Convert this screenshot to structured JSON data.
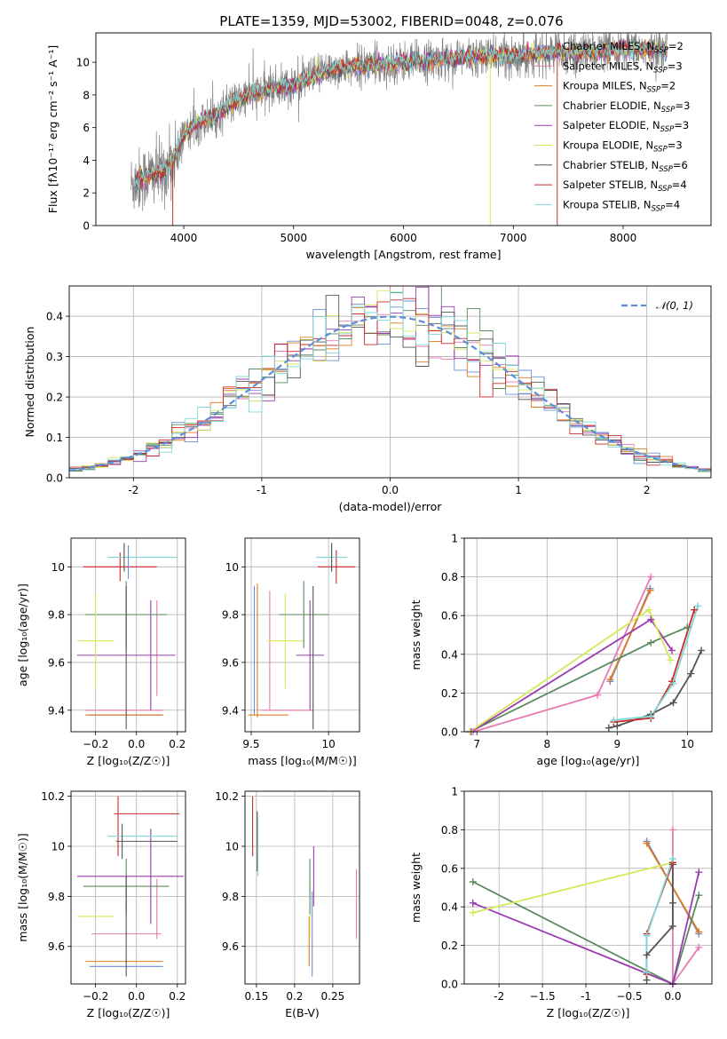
{
  "figure": {
    "title": "PLATE=1359, MJD=53002, FIBERID=0048, z=0.076",
    "colors": {
      "Chabrier MILES": "#6a8fd8",
      "Salpeter MILES": "#e87ab0",
      "Kroupa MILES": "#e07b1e",
      "Chabrier ELODIE": "#5a8a5e",
      "Salpeter ELODIE": "#9a3bb0",
      "Kroupa ELODIE": "#d4e85a",
      "Chabrier STELIB": "#555555",
      "Salpeter STELIB": "#cc2a2a",
      "Kroupa STELIB": "#7fd8d8",
      "data": "#808080",
      "gaussian": "#5b8fd6"
    }
  },
  "legend": {
    "entries": [
      {
        "name": "Chabrier MILES",
        "nssp": "2"
      },
      {
        "name": "Salpeter MILES",
        "nssp": "3"
      },
      {
        "name": "Kroupa MILES",
        "nssp": "2"
      },
      {
        "name": "Chabrier ELODIE",
        "nssp": "3"
      },
      {
        "name": "Salpeter ELODIE",
        "nssp": "3"
      },
      {
        "name": "Kroupa ELODIE",
        "nssp": "3"
      },
      {
        "name": "Chabrier STELIB",
        "nssp": "6"
      },
      {
        "name": "Salpeter STELIB",
        "nssp": "4"
      },
      {
        "name": "Kroupa STELIB",
        "nssp": "4"
      }
    ],
    "gaussian_label": "𝒩(0, 1)"
  },
  "chart_data": [
    {
      "id": "spectrum",
      "type": "line",
      "title": "PLATE=1359, MJD=53002, FIBERID=0048, z=0.076",
      "xlabel": "wavelength [Angstrom, rest frame]",
      "ylabel": "Flux [fλ10⁻¹⁷ erg cm⁻² s⁻¹ A⁻¹]",
      "xlim": [
        3200,
        8800
      ],
      "ylim": [
        0,
        11.8
      ],
      "xticks": [
        4000,
        5000,
        6000,
        7000,
        8000
      ],
      "yticks": [
        0,
        2,
        4,
        6,
        8,
        10
      ],
      "grid": false,
      "legend_position": "right",
      "continuum": {
        "x": [
          3520,
          3600,
          3700,
          3800,
          3900,
          4000,
          4100,
          4200,
          4300,
          4400,
          4600,
          4800,
          5000,
          5200,
          5400,
          5600,
          5800,
          6000,
          6200,
          6400,
          6600,
          6800,
          7000,
          7200,
          7400,
          7600,
          7800,
          8000,
          8200,
          8400
        ],
        "y": [
          2.5,
          2.8,
          3.1,
          3.2,
          3.9,
          5.5,
          6.2,
          6.5,
          6.7,
          7.3,
          8.0,
          8.4,
          8.6,
          9.2,
          9.6,
          9.8,
          9.9,
          10.0,
          10.1,
          10.2,
          10.3,
          10.4,
          10.4,
          10.5,
          10.6,
          10.6,
          10.7,
          10.7,
          10.8,
          10.8
        ]
      },
      "dropouts": [
        {
          "x": 3900,
          "y": 0
        },
        {
          "x": 6790,
          "y": 0
        },
        {
          "x": 7400,
          "y": 0
        }
      ]
    },
    {
      "id": "residuals",
      "type": "bar",
      "xlabel": "(data-model)/error",
      "ylabel": "Normed distribution",
      "xlim": [
        -2.5,
        2.5
      ],
      "ylim": [
        0,
        0.475
      ],
      "xticks": [
        -2,
        -1,
        0,
        1,
        2
      ],
      "yticks": [
        0.0,
        0.1,
        0.2,
        0.3,
        0.4
      ],
      "grid": true,
      "legend_position": "top-right",
      "bin_width": 0.1,
      "gaussian": {
        "mean": 0,
        "sigma": 1
      }
    },
    {
      "id": "age-vs-Z",
      "type": "scatter",
      "xlabel": "Z [log₁₀(Z/Z☉)]",
      "ylabel": "age  [log₁₀(age/yr)]",
      "xlim": [
        -0.32,
        0.24
      ],
      "ylim": [
        9.31,
        10.12
      ],
      "xticks": [
        -0.2,
        0.0,
        0.2
      ],
      "yticks": [
        9.4,
        9.6,
        9.8,
        10.0
      ],
      "grid": true,
      "points": [
        {
          "s": "Chabrier MILES",
          "x": -0.05,
          "y": 9.38,
          "ex": 0.18,
          "ey": 0.0
        },
        {
          "s": "Salpeter MILES",
          "x": -0.06,
          "y": 9.4,
          "ex": 0.19,
          "ey": 0.0
        },
        {
          "s": "Kroupa MILES",
          "x": -0.06,
          "y": 9.38,
          "ex": 0.19,
          "ey": 0.0
        },
        {
          "s": "Salpeter MILES",
          "x": 0.1,
          "y": 9.66,
          "ex": 0.0,
          "ey": 0.2
        },
        {
          "s": "Chabrier ELODIE",
          "x": -0.05,
          "y": 9.8,
          "ex": 0.2,
          "ey": 0.14
        },
        {
          "s": "Salpeter ELODIE",
          "x": 0.07,
          "y": 9.63,
          "ex": 0.0,
          "ey": 0.23
        },
        {
          "s": "Salpeter ELODIE",
          "x": -0.05,
          "y": 9.63,
          "ex": 0.24,
          "ey": 0.0
        },
        {
          "s": "Kroupa ELODIE",
          "x": -0.2,
          "y": 9.69,
          "ex": 0.09,
          "ey": 0.2
        },
        {
          "s": "Chabrier STELIB",
          "x": -0.05,
          "y": 9.62,
          "ex": 0.0,
          "ey": 0.3
        },
        {
          "s": "Salpeter STELIB",
          "x": -0.08,
          "y": 10.0,
          "ex": 0.18,
          "ey": 0.06
        },
        {
          "s": "Kroupa STELIB",
          "x": 0.03,
          "y": 10.04,
          "ex": 0.17,
          "ey": 0.0
        },
        {
          "s": "Chabrier STELIB",
          "x": -0.06,
          "y": 10.04,
          "ex": 0.0,
          "ey": 0.06
        },
        {
          "s": "Chabrier MILES",
          "x": -0.04,
          "y": 10.02,
          "ex": 0.0,
          "ey": 0.07
        }
      ]
    },
    {
      "id": "age-vs-mass",
      "type": "scatter",
      "xlabel": "mass [log₁₀(M/M☉)]",
      "ylabel": "",
      "xlim": [
        9.46,
        10.2
      ],
      "ylim": [
        9.31,
        10.12
      ],
      "xticks": [
        9.5,
        10.0
      ],
      "yticks": [
        9.4,
        9.6,
        9.8,
        10.0
      ],
      "grid": true,
      "points": [
        {
          "s": "Chabrier MILES",
          "x": 9.52,
          "y": 9.65,
          "ex": 0.0,
          "ey": 0.27
        },
        {
          "s": "Kroupa MILES",
          "x": 9.54,
          "y": 9.65,
          "ex": 0.0,
          "ey": 0.28
        },
        {
          "s": "Kroupa MILES",
          "x": 9.61,
          "y": 9.38,
          "ex": 0.13,
          "ey": 0.0
        },
        {
          "s": "Salpeter MILES",
          "x": 9.62,
          "y": 9.65,
          "ex": 0.0,
          "ey": 0.25
        },
        {
          "s": "Salpeter MILES",
          "x": 9.73,
          "y": 9.4,
          "ex": 0.17,
          "ey": 0.0
        },
        {
          "s": "Kroupa ELODIE",
          "x": 9.72,
          "y": 9.69,
          "ex": 0.12,
          "ey": 0.2
        },
        {
          "s": "Chabrier ELODIE",
          "x": 9.84,
          "y": 9.8,
          "ex": 0.16,
          "ey": 0.14
        },
        {
          "s": "Salpeter ELODIE",
          "x": 9.88,
          "y": 9.63,
          "ex": 0.0,
          "ey": 0.23
        },
        {
          "s": "Salpeter ELODIE",
          "x": 9.88,
          "y": 9.63,
          "ex": 0.09,
          "ey": 0.0
        },
        {
          "s": "Chabrier STELIB",
          "x": 9.9,
          "y": 9.62,
          "ex": 0.0,
          "ey": 0.3
        },
        {
          "s": "Salpeter STELIB",
          "x": 10.05,
          "y": 10.0,
          "ex": 0.12,
          "ey": 0.07
        },
        {
          "s": "Kroupa STELIB",
          "x": 10.02,
          "y": 10.04,
          "ex": 0.1,
          "ey": 0.06
        },
        {
          "s": "Chabrier STELIB",
          "x": 10.02,
          "y": 10.04,
          "ex": 0.0,
          "ey": 0.06
        }
      ]
    },
    {
      "id": "weight-vs-age",
      "type": "line",
      "xlabel": "age  [log₁₀(age/yr)]",
      "ylabel": "mass weight",
      "xlim": [
        6.82,
        10.35
      ],
      "ylim": [
        0,
        1.0
      ],
      "xticks": [
        7,
        8,
        9,
        10
      ],
      "yticks": [
        0.0,
        0.2,
        0.4,
        0.6,
        0.8,
        1.0
      ],
      "grid": true,
      "series": [
        {
          "name": "Chabrier MILES",
          "x": [
            9.47,
            8.9
          ],
          "y": [
            0.74,
            0.26
          ]
        },
        {
          "name": "Salpeter MILES",
          "x": [
            6.95,
            8.72,
            9.48
          ],
          "y": [
            0.0,
            0.19,
            0.8
          ]
        },
        {
          "name": "Kroupa MILES",
          "x": [
            9.47,
            8.9
          ],
          "y": [
            0.73,
            0.27
          ]
        },
        {
          "name": "Chabrier ELODIE",
          "x": [
            6.9,
            9.48,
            10.0
          ],
          "y": [
            0.0,
            0.46,
            0.54
          ]
        },
        {
          "name": "Salpeter ELODIE",
          "x": [
            6.92,
            9.48,
            9.78
          ],
          "y": [
            0.0,
            0.58,
            0.42
          ]
        },
        {
          "name": "Kroupa ELODIE",
          "x": [
            6.9,
            9.45,
            9.76
          ],
          "y": [
            0.0,
            0.63,
            0.37
          ]
        },
        {
          "name": "Chabrier STELIB",
          "x": [
            8.88,
            9.0,
            9.48,
            9.8,
            10.05,
            10.2
          ],
          "y": [
            0.02,
            0.03,
            0.09,
            0.15,
            0.3,
            0.42
          ]
        },
        {
          "name": "Salpeter STELIB",
          "x": [
            8.95,
            9.48,
            9.78,
            10.1
          ],
          "y": [
            0.05,
            0.07,
            0.26,
            0.63
          ]
        },
        {
          "name": "Kroupa STELIB",
          "x": [
            8.95,
            9.48,
            9.8,
            10.15
          ],
          "y": [
            0.06,
            0.08,
            0.25,
            0.65
          ]
        }
      ]
    },
    {
      "id": "mass-vs-Z",
      "type": "scatter",
      "xlabel": "Z [log₁₀(Z/Z☉)]",
      "ylabel": "mass [log₁₀(M/M☉)]",
      "xlim": [
        -0.32,
        0.24
      ],
      "ylim": [
        9.45,
        10.22
      ],
      "xticks": [
        -0.2,
        0.0,
        0.2
      ],
      "yticks": [
        9.6,
        9.8,
        10.0,
        10.2
      ],
      "grid": true,
      "points": [
        {
          "s": "Chabrier MILES",
          "x": -0.05,
          "y": 9.52,
          "ex": 0.18,
          "ey": 0.0
        },
        {
          "s": "Kroupa MILES",
          "x": -0.06,
          "y": 9.54,
          "ex": 0.19,
          "ey": 0.0
        },
        {
          "s": "Salpeter MILES",
          "x": -0.05,
          "y": 9.65,
          "ex": 0.17,
          "ey": 0.0
        },
        {
          "s": "Salpeter MILES",
          "x": 0.1,
          "y": 9.75,
          "ex": 0.0,
          "ey": 0.12
        },
        {
          "s": "Kroupa ELODIE",
          "x": -0.2,
          "y": 9.72,
          "ex": 0.09,
          "ey": 0.0
        },
        {
          "s": "Chabrier ELODIE",
          "x": -0.05,
          "y": 9.84,
          "ex": 0.21,
          "ey": 0.11
        },
        {
          "s": "Salpeter ELODIE",
          "x": 0.07,
          "y": 9.88,
          "ex": 0.0,
          "ey": 0.19
        },
        {
          "s": "Salpeter ELODIE",
          "x": -0.03,
          "y": 9.88,
          "ex": 0.26,
          "ey": 0.0
        },
        {
          "s": "Chabrier STELIB",
          "x": -0.05,
          "y": 9.68,
          "ex": 0.0,
          "ey": 0.2
        },
        {
          "s": "Salpeter STELIB",
          "x": 0.05,
          "y": 10.13,
          "ex": 0.16,
          "ey": 0.0
        },
        {
          "s": "Salpeter STELIB",
          "x": -0.09,
          "y": 10.08,
          "ex": 0.0,
          "ey": 0.12
        },
        {
          "s": "Kroupa STELIB",
          "x": 0.03,
          "y": 10.04,
          "ex": 0.17,
          "ey": 0.0
        },
        {
          "s": "Chabrier STELIB",
          "x": 0.05,
          "y": 10.02,
          "ex": 0.15,
          "ey": 0.0
        },
        {
          "s": "Chabrier STELIB",
          "x": -0.07,
          "y": 10.02,
          "ex": 0.0,
          "ey": 0.07
        }
      ]
    },
    {
      "id": "mass-vs-EBV",
      "type": "scatter",
      "xlabel": "E(B-V)",
      "ylabel": "",
      "xlim": [
        0.135,
        0.285
      ],
      "ylim": [
        9.45,
        10.22
      ],
      "xticks": [
        0.15,
        0.2,
        0.25
      ],
      "yticks": [
        9.6,
        9.8,
        10.0,
        10.2
      ],
      "grid": true,
      "points": [
        {
          "s": "Salpeter STELIB",
          "x": 0.145,
          "y": 10.08,
          "ex": 0.0,
          "ey": 0.12
        },
        {
          "s": "Chabrier STELIB",
          "x": 0.151,
          "y": 10.02,
          "ex": 0.0,
          "ey": 0.12
        },
        {
          "s": "Kroupa STELIB",
          "x": 0.152,
          "y": 10.0,
          "ex": 0.0,
          "ey": 0.12
        },
        {
          "s": "Kroupa MILES",
          "x": 0.219,
          "y": 9.62,
          "ex": 0.0,
          "ey": 0.1
        },
        {
          "s": "Kroupa ELODIE",
          "x": 0.22,
          "y": 9.75,
          "ex": 0.0,
          "ey": 0.12
        },
        {
          "s": "Chabrier ELODIE",
          "x": 0.22,
          "y": 9.84,
          "ex": 0.0,
          "ey": 0.11
        },
        {
          "s": "Chabrier MILES",
          "x": 0.223,
          "y": 9.65,
          "ex": 0.0,
          "ey": 0.17
        },
        {
          "s": "Salpeter ELODIE",
          "x": 0.225,
          "y": 9.88,
          "ex": 0.0,
          "ey": 0.12
        },
        {
          "s": "Salpeter MILES",
          "x": 0.281,
          "y": 9.77,
          "ex": 0.0,
          "ey": 0.14
        }
      ]
    },
    {
      "id": "weight-vs-Z",
      "type": "line",
      "xlabel": "Z [log₁₀(Z/Z☉)]",
      "ylabel": "mass weight",
      "xlim": [
        -2.4,
        0.45
      ],
      "ylim": [
        0,
        1.0
      ],
      "xticks": [
        -2.0,
        -1.5,
        -1.0,
        -0.5,
        0.0
      ],
      "yticks": [
        0.0,
        0.2,
        0.4,
        0.6,
        0.8,
        1.0
      ],
      "grid": true,
      "series": [
        {
          "name": "Chabrier MILES",
          "x": [
            -0.3,
            0.3
          ],
          "y": [
            0.74,
            0.26
          ]
        },
        {
          "name": "Salpeter MILES",
          "x": [
            0.3,
            0.0,
            0.0
          ],
          "y": [
            0.19,
            0.0,
            0.8
          ]
        },
        {
          "name": "Kroupa MILES",
          "x": [
            -0.3,
            0.3
          ],
          "y": [
            0.73,
            0.27
          ]
        },
        {
          "name": "Chabrier ELODIE",
          "x": [
            -2.3,
            0.0,
            0.3
          ],
          "y": [
            0.53,
            0.0,
            0.46
          ]
        },
        {
          "name": "Salpeter ELODIE",
          "x": [
            -2.3,
            0.0,
            0.3
          ],
          "y": [
            0.42,
            0.0,
            0.58
          ]
        },
        {
          "name": "Kroupa ELODIE",
          "x": [
            -2.3,
            0.0
          ],
          "y": [
            0.37,
            0.63
          ]
        },
        {
          "name": "Chabrier STELIB",
          "x": [
            -0.3,
            -0.3,
            0.0,
            0.0,
            0.0
          ],
          "y": [
            0.02,
            0.15,
            0.3,
            0.42,
            0.62
          ]
        },
        {
          "name": "Salpeter STELIB",
          "x": [
            -0.3,
            -0.3,
            0.0
          ],
          "y": [
            0.05,
            0.26,
            0.63
          ]
        },
        {
          "name": "Kroupa STELIB",
          "x": [
            -0.3,
            -0.3,
            0.0
          ],
          "y": [
            0.06,
            0.25,
            0.65
          ]
        }
      ]
    }
  ]
}
